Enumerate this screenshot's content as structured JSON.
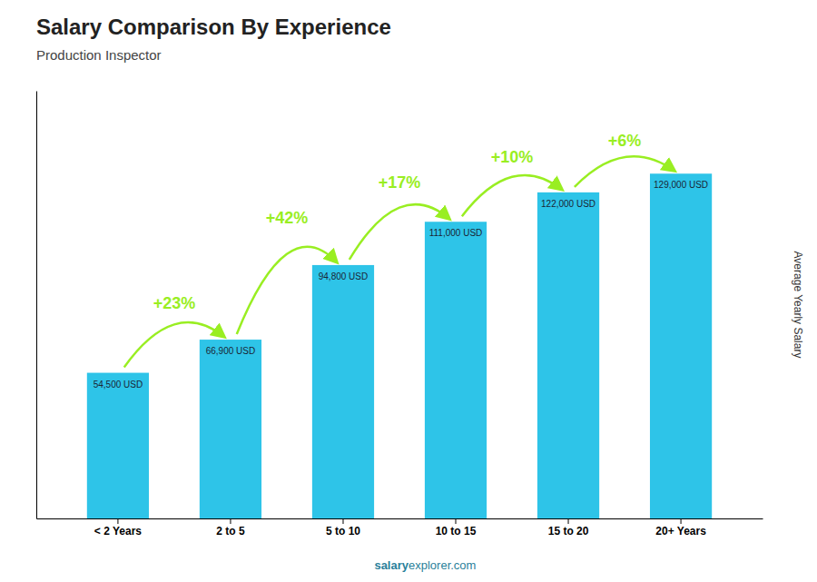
{
  "chart_data": {
    "type": "bar",
    "title": "Salary Comparison By Experience",
    "subtitle": "Production Inspector",
    "ylabel": "Average Yearly Salary",
    "categories": [
      "< 2 Years",
      "2 to 5",
      "5 to 10",
      "10 to 15",
      "15 to 20",
      "20+ Years"
    ],
    "values": [
      54500,
      66900,
      94800,
      111000,
      122000,
      129000
    ],
    "value_labels": [
      "54,500 USD",
      "66,900 USD",
      "94,800 USD",
      "111,000 USD",
      "122,000 USD",
      "129,000 USD"
    ],
    "data_labels": true,
    "color": "#2ec4e8",
    "ylim": [
      0,
      160000
    ],
    "tick_labels": "x",
    "annotations": [
      {
        "text": "+23%",
        "color": "#99ee22"
      },
      {
        "text": "+42%",
        "color": "#99ee22"
      },
      {
        "text": "+17%",
        "color": "#99ee22"
      },
      {
        "text": "+10%",
        "color": "#99ee22"
      },
      {
        "text": "+6%",
        "color": "#99ee22"
      }
    ],
    "footer": [
      "salary",
      "explorer.com"
    ]
  }
}
